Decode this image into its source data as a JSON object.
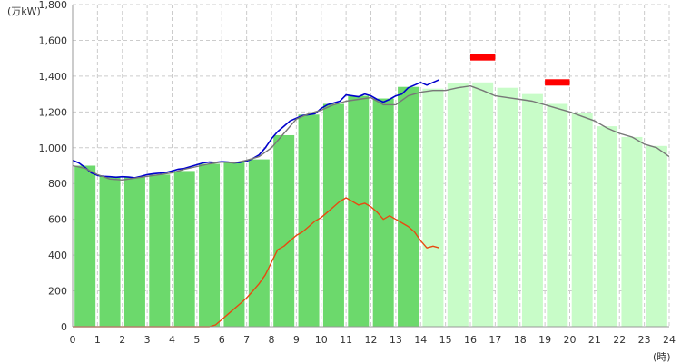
{
  "chart_data": {
    "type": "bar",
    "y_unit_label": "(万kW)",
    "x_unit_label": "(時)",
    "ylim": [
      0,
      1800
    ],
    "y_ticks": [
      0,
      200,
      400,
      600,
      800,
      1000,
      1200,
      1400,
      1600,
      1800
    ],
    "y_tick_labels": [
      "0",
      "200",
      "400",
      "600",
      "800",
      "1,000",
      "1,200",
      "1,400",
      "1,600",
      "1,800"
    ],
    "xlim": [
      0,
      24
    ],
    "x_ticks": [
      0,
      1,
      2,
      3,
      4,
      5,
      6,
      7,
      8,
      9,
      10,
      11,
      12,
      13,
      14,
      15,
      16,
      17,
      18,
      19,
      20,
      21,
      22,
      23,
      24
    ],
    "x_tick_labels": [
      "0",
      "1",
      "2",
      "3",
      "4",
      "5",
      "6",
      "7",
      "8",
      "9",
      "10",
      "11",
      "12",
      "13",
      "14",
      "15",
      "16",
      "17",
      "18",
      "19",
      "20",
      "21",
      "22",
      "23",
      "24"
    ],
    "grid": true,
    "colors": {
      "actual_bar": "#6cd96c",
      "forecast_bar": "#c8fcc8",
      "actual_line": "#0000cc",
      "forecast_line": "#777777",
      "orange_line": "#e84a10",
      "peak_marker": "#ff0000",
      "grid": "#cccccc",
      "axis": "#999999"
    },
    "bars": {
      "hours": [
        0,
        1,
        2,
        3,
        4,
        5,
        6,
        7,
        8,
        9,
        10,
        11,
        12,
        13,
        14,
        15,
        16,
        17,
        18,
        19,
        20,
        21,
        22,
        23
      ],
      "values": [
        900,
        840,
        835,
        850,
        870,
        910,
        920,
        935,
        1070,
        1185,
        1245,
        1290,
        1275,
        1340,
        1330,
        1360,
        1365,
        1335,
        1300,
        1245,
        1195,
        1120,
        1060,
        1010
      ],
      "actual_count": 14
    },
    "series": [
      {
        "role": "actual",
        "x": [
          0,
          0.25,
          0.5,
          0.75,
          1,
          1.25,
          1.5,
          1.75,
          2,
          2.25,
          2.5,
          2.75,
          3,
          3.25,
          3.5,
          3.75,
          4,
          4.25,
          4.5,
          4.75,
          5,
          5.25,
          5.5,
          5.75,
          6,
          6.25,
          6.5,
          6.75,
          7,
          7.25,
          7.5,
          7.75,
          8,
          8.25,
          8.5,
          8.75,
          9,
          9.25,
          9.5,
          9.75,
          10,
          10.25,
          10.5,
          10.75,
          11,
          11.25,
          11.5,
          11.75,
          12,
          12.25,
          12.5,
          12.75,
          13,
          13.25,
          13.5,
          13.75,
          14,
          14.25,
          14.5,
          14.75
        ],
        "y": [
          930,
          915,
          890,
          860,
          845,
          840,
          838,
          835,
          838,
          836,
          832,
          840,
          850,
          855,
          858,
          862,
          870,
          880,
          885,
          895,
          905,
          915,
          920,
          918,
          922,
          920,
          915,
          918,
          925,
          940,
          960,
          1000,
          1050,
          1090,
          1120,
          1150,
          1165,
          1180,
          1185,
          1190,
          1220,
          1240,
          1250,
          1260,
          1295,
          1290,
          1285,
          1300,
          1290,
          1270,
          1255,
          1270,
          1290,
          1300,
          1335,
          1350,
          1365,
          1350,
          1365,
          1380
        ]
      },
      {
        "role": "forecast",
        "x": [
          0,
          0.5,
          1,
          1.5,
          2,
          2.5,
          3,
          3.5,
          4,
          4.5,
          5,
          5.5,
          6,
          6.5,
          7,
          7.5,
          8,
          8.5,
          9,
          9.5,
          10,
          10.5,
          11,
          11.5,
          12,
          12.5,
          13,
          13.5,
          14,
          14.5,
          15,
          15.5,
          16,
          16.5,
          17,
          17.5,
          18,
          18.5,
          19,
          19.5,
          20,
          20.5,
          21,
          21.5,
          22,
          22.5,
          23,
          23.5,
          24
        ],
        "y": [
          900,
          885,
          850,
          825,
          820,
          830,
          840,
          850,
          860,
          880,
          895,
          910,
          920,
          915,
          930,
          950,
          1000,
          1080,
          1160,
          1190,
          1210,
          1240,
          1260,
          1270,
          1280,
          1240,
          1240,
          1290,
          1310,
          1320,
          1320,
          1335,
          1345,
          1320,
          1290,
          1280,
          1270,
          1260,
          1240,
          1220,
          1200,
          1175,
          1150,
          1110,
          1080,
          1060,
          1020,
          1000,
          950
        ]
      },
      {
        "role": "orange",
        "x": [
          0,
          0.5,
          1,
          1.5,
          2,
          2.5,
          3,
          3.5,
          4,
          4.5,
          5,
          5.25,
          5.5,
          5.75,
          6,
          6.25,
          6.5,
          6.75,
          7,
          7.25,
          7.5,
          7.75,
          8,
          8.25,
          8.5,
          8.75,
          9,
          9.25,
          9.5,
          9.75,
          10,
          10.25,
          10.5,
          10.75,
          11,
          11.25,
          11.5,
          11.75,
          12,
          12.25,
          12.5,
          12.75,
          13,
          13.25,
          13.5,
          13.75,
          14,
          14.25,
          14.5,
          14.75
        ],
        "y": [
          0,
          0,
          0,
          0,
          0,
          0,
          0,
          0,
          0,
          0,
          0,
          0,
          0,
          10,
          40,
          70,
          100,
          130,
          160,
          200,
          240,
          290,
          360,
          430,
          450,
          480,
          510,
          530,
          560,
          590,
          610,
          640,
          670,
          700,
          720,
          700,
          680,
          690,
          670,
          640,
          600,
          620,
          600,
          580,
          560,
          530,
          480,
          440,
          450,
          440
        ]
      }
    ],
    "peak_markers": [
      {
        "x_start": 16,
        "x_end": 17,
        "y": 1505
      },
      {
        "x_start": 19,
        "x_end": 20,
        "y": 1365
      }
    ]
  }
}
